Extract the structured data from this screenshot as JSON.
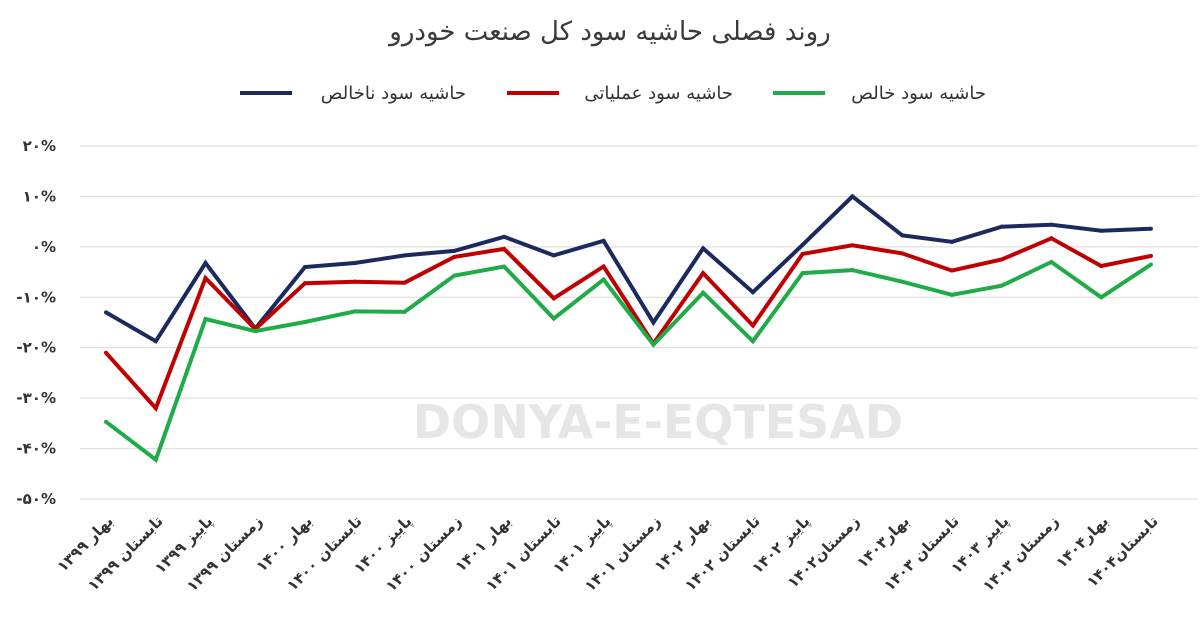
{
  "chart_data": {
    "type": "line",
    "title": "روند فصلی حاشیه سود کل صنعت خودرو",
    "watermark": "DONYA-E-EQTESAD",
    "categories": [
      "بهار ۱۳۹۹",
      "تابستان ۱۳۹۹",
      "پاییز ۱۳۹۹",
      "زمستان ۱۳۹۹",
      "بهار ۱۴۰۰",
      "تابستان ۱۴۰۰",
      "پاییز ۱۴۰۰",
      "زمستان ۱۴۰۰",
      "بهار ۱۴۰۱",
      "تابستان ۱۴۰۱",
      "پاییز ۱۴۰۱",
      "زمستان ۱۴۰۱",
      "بهار ۱۴۰۲",
      "تابستان ۱۴۰۲",
      "پاییز ۱۴۰۲",
      "زمستان۱۴۰۲",
      "بهار۱۴۰۳",
      "تابستان ۱۴۰۳",
      "پاییز ۱۴۰۳",
      "زمستان ۱۴۰۳",
      "بهار۱۴۰۴",
      "تابستان۱۴۰۴"
    ],
    "ylim": [
      -50,
      20
    ],
    "yticks": [
      {
        "value": 20,
        "label": "۲۰%"
      },
      {
        "value": 10,
        "label": "۱۰%"
      },
      {
        "value": 0,
        "label": "۰%"
      },
      {
        "value": -10,
        "label": "-۱۰%"
      },
      {
        "value": -20,
        "label": "-۲۰%"
      },
      {
        "value": -30,
        "label": "-۳۰%"
      },
      {
        "value": -40,
        "label": "-۴۰%"
      },
      {
        "value": -50,
        "label": "-۵۰%"
      }
    ],
    "grid": true,
    "legend_position": "top",
    "series": [
      {
        "name": "حاشیه سود ناخالص",
        "color": "#1a2a5e",
        "values": [
          -13,
          -18.7,
          -3.2,
          -16.2,
          -4,
          -3.2,
          -1.7,
          -0.8,
          2,
          -1.7,
          1.2,
          -15,
          -0.3,
          -9,
          0.4,
          10,
          2.3,
          1,
          4,
          4.4,
          3.2,
          3.6
        ]
      },
      {
        "name": "حاشیه سود عملیاتی",
        "color": "#c00000",
        "values": [
          -21,
          -32,
          -6.2,
          -16.3,
          -7.2,
          -6.9,
          -7.1,
          -2,
          -0.4,
          -10.2,
          -3.9,
          -19.2,
          -5.2,
          -15.6,
          -1.4,
          0.3,
          -1.3,
          -4.7,
          -2.5,
          1.7,
          -3.8,
          -1.8
        ]
      },
      {
        "name": "حاشیه سود خالص",
        "color": "#1fac48",
        "values": [
          -34.7,
          -42.2,
          -14.3,
          -16.7,
          -14.9,
          -12.8,
          -12.9,
          -5.7,
          -3.9,
          -14.2,
          -6.5,
          -19.4,
          -9.1,
          -18.7,
          -5.2,
          -4.6,
          -6.9,
          -9.5,
          -7.7,
          -3,
          -10,
          -3.5
        ]
      }
    ]
  }
}
